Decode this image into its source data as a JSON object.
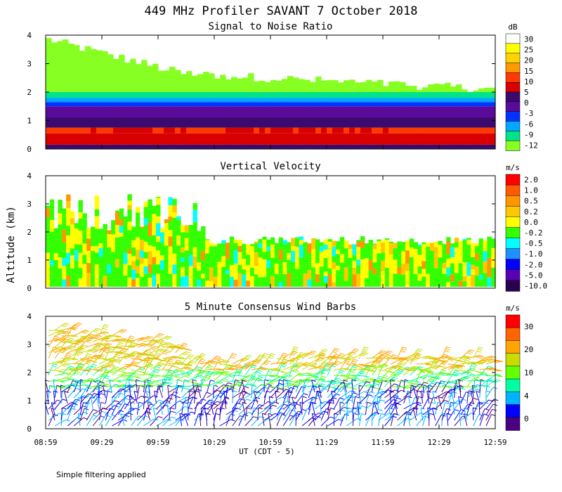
{
  "chart_data": {
    "type": "heatmap",
    "title": "449 MHz Profiler SAVANT  7 October 2018",
    "xlabel": "UT  (CDT - 5)",
    "ylabel": "Altitude (km)",
    "footnote": "Simple filtering applied",
    "x_ticks": [
      "08:59",
      "09:29",
      "09:59",
      "10:29",
      "10:59",
      "11:29",
      "11:59",
      "12:29",
      "12:59"
    ],
    "panels": [
      {
        "name": "snr",
        "title": "Signal to Noise Ratio",
        "ylim": [
          0,
          4
        ],
        "yticks": [
          "0",
          "1",
          "2",
          "3",
          "4"
        ],
        "colorbar": {
          "unit": "dB",
          "labels": [
            "30",
            "25",
            "20",
            "15",
            "10",
            "5",
            "0",
            "-3",
            "-6",
            "-9",
            "-12"
          ],
          "colors": [
            "#ffffff",
            "#ffff00",
            "#ffd200",
            "#ff9900",
            "#ff3a00",
            "#d80000",
            "#3a0a6e",
            "#5a0b9a",
            "#0033ff",
            "#00a8ff",
            "#00e38a",
            "#88ff22"
          ]
        }
      },
      {
        "name": "velocity",
        "title": "Vertical Velocity",
        "ylim": [
          0,
          4
        ],
        "yticks": [
          "0",
          "1",
          "2",
          "3",
          "4"
        ],
        "colorbar": {
          "unit": "m/s",
          "labels": [
            "2.0",
            "1.0",
            "0.5",
            "0.2",
            "0.0",
            "-0.2",
            "-0.5",
            "-1.0",
            "-2.0",
            "-5.0",
            "-10.0"
          ],
          "colors": [
            "#ff0000",
            "#ff5a00",
            "#ff9600",
            "#ffc800",
            "#ffff00",
            "#33ff00",
            "#00ffff",
            "#1e90ff",
            "#0000ff",
            "#5a00b4",
            "#2a0050"
          ]
        }
      },
      {
        "name": "wind",
        "title": "5 Minute Consensus Wind Barbs",
        "ylim": [
          0,
          4
        ],
        "yticks": [
          "0",
          "1",
          "2",
          "3",
          "4"
        ],
        "colorbar": {
          "unit": "m/s",
          "labels": [
            "30",
            "20",
            "10",
            "4",
            "0"
          ],
          "colors": [
            "#ff0000",
            "#ff6400",
            "#ffa500",
            "#c8dc00",
            "#64ff00",
            "#00ffa0",
            "#00b4ff",
            "#0000ff",
            "#4b0082"
          ]
        }
      }
    ]
  }
}
